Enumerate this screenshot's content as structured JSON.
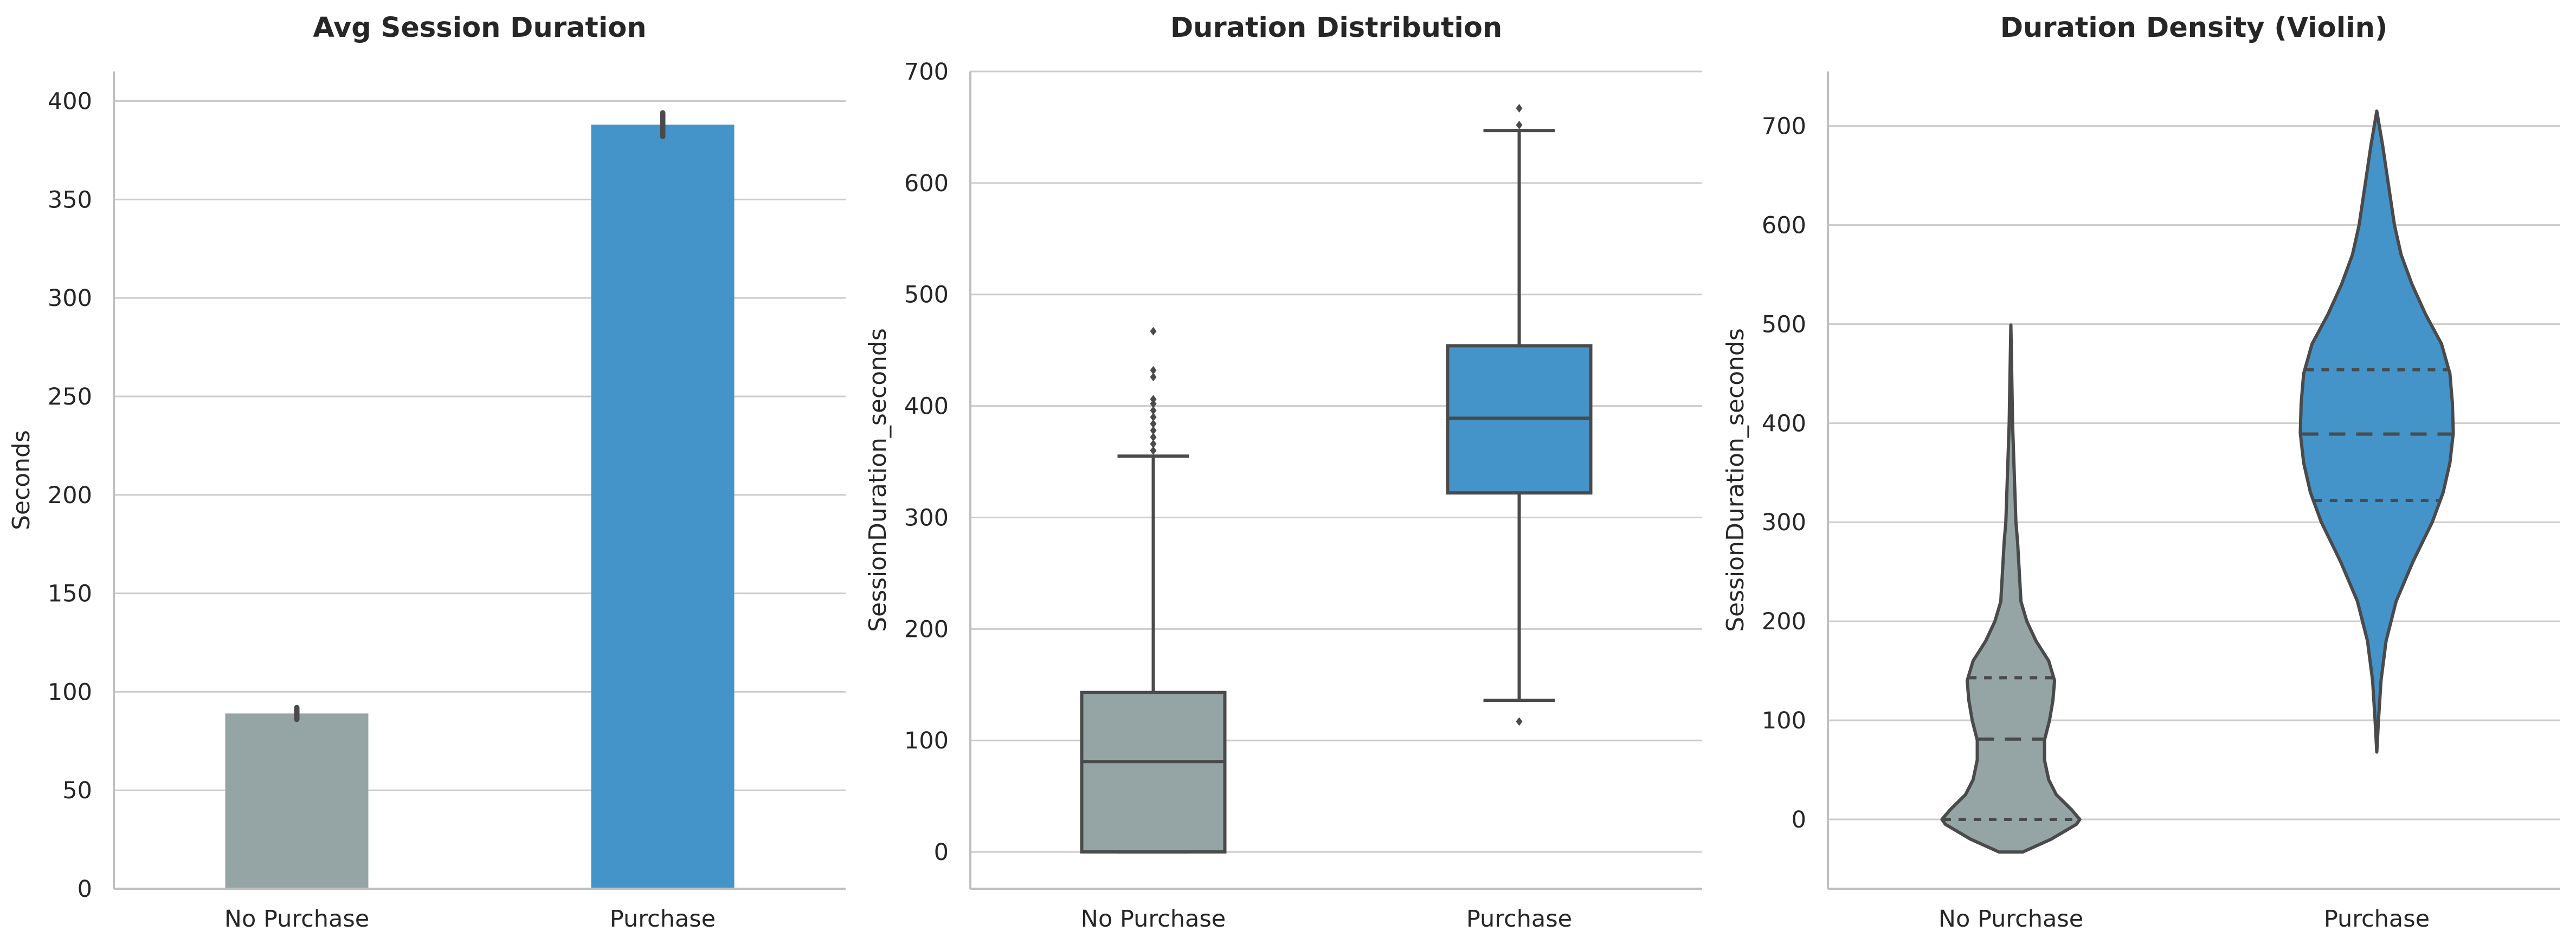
{
  "chart_data": [
    {
      "type": "bar",
      "title": "Avg Session Duration",
      "xlabel": "",
      "ylabel": "Seconds",
      "categories": [
        "No Purchase",
        "Purchase"
      ],
      "values": [
        89,
        388
      ],
      "error_bars": [
        [
          86,
          92
        ],
        [
          382,
          394
        ]
      ],
      "ylim": [
        0,
        415
      ],
      "yticks": [
        0,
        50,
        100,
        150,
        200,
        250,
        300,
        350,
        400
      ],
      "grid": "horizontal"
    },
    {
      "type": "box",
      "title": "Duration Distribution",
      "xlabel": "",
      "ylabel": "SessionDuration_seconds",
      "categories": [
        "No Purchase",
        "Purchase"
      ],
      "boxes": [
        {
          "whisker_low": 0,
          "q1": 0,
          "median": 81,
          "q3": 143,
          "whisker_high": 355,
          "outliers": [
            360,
            366,
            372,
            378,
            384,
            390,
            396,
            402,
            406,
            426,
            432,
            467
          ]
        },
        {
          "whisker_low": 136,
          "q1": 322,
          "median": 389,
          "q3": 454,
          "whisker_high": 647,
          "outliers": [
            117,
            652,
            667
          ]
        }
      ],
      "ylim": [
        -33,
        700
      ],
      "yticks": [
        0,
        100,
        200,
        300,
        400,
        500,
        600,
        700
      ],
      "grid": "horizontal"
    },
    {
      "type": "violin",
      "title": "Duration Density (Violin)",
      "xlabel": "",
      "ylabel": "SessionDuration_seconds",
      "categories": [
        "No Purchase",
        "Purchase"
      ],
      "violins": [
        {
          "min": -33,
          "max": 499,
          "quartiles": [
            0,
            81,
            143
          ],
          "density": [
            [
              -33,
              0.14
            ],
            [
              -20,
              0.48
            ],
            [
              -5,
              0.78
            ],
            [
              0,
              0.82
            ],
            [
              10,
              0.72
            ],
            [
              25,
              0.54
            ],
            [
              40,
              0.45
            ],
            [
              60,
              0.4
            ],
            [
              80,
              0.4
            ],
            [
              100,
              0.46
            ],
            [
              120,
              0.5
            ],
            [
              140,
              0.52
            ],
            [
              160,
              0.45
            ],
            [
              180,
              0.3
            ],
            [
              200,
              0.19
            ],
            [
              220,
              0.12
            ],
            [
              250,
              0.1
            ],
            [
              280,
              0.08
            ],
            [
              300,
              0.06
            ],
            [
              350,
              0.04
            ],
            [
              400,
              0.02
            ],
            [
              450,
              0.01
            ],
            [
              499,
              0.0
            ]
          ]
        },
        {
          "min": 68,
          "max": 715,
          "quartiles": [
            322,
            389,
            454
          ],
          "density": [
            [
              68,
              0.0
            ],
            [
              100,
              0.02
            ],
            [
              140,
              0.05
            ],
            [
              180,
              0.11
            ],
            [
              220,
              0.23
            ],
            [
              260,
              0.43
            ],
            [
              300,
              0.66
            ],
            [
              330,
              0.79
            ],
            [
              360,
              0.87
            ],
            [
              390,
              0.91
            ],
            [
              420,
              0.9
            ],
            [
              450,
              0.87
            ],
            [
              480,
              0.77
            ],
            [
              510,
              0.58
            ],
            [
              540,
              0.42
            ],
            [
              570,
              0.29
            ],
            [
              600,
              0.21
            ],
            [
              640,
              0.14
            ],
            [
              680,
              0.07
            ],
            [
              715,
              0.0
            ]
          ]
        }
      ],
      "ylim": [
        -70,
        755
      ],
      "yticks": [
        0,
        100,
        200,
        300,
        400,
        500,
        600,
        700
      ],
      "grid": "horizontal"
    }
  ],
  "colors": {
    "no_purchase": "#95a5a6",
    "purchase": "#4494c9",
    "edge": "#4a4a4a",
    "grid": "#cccccc",
    "axis": "#bfbfbf",
    "text": "#262626"
  }
}
